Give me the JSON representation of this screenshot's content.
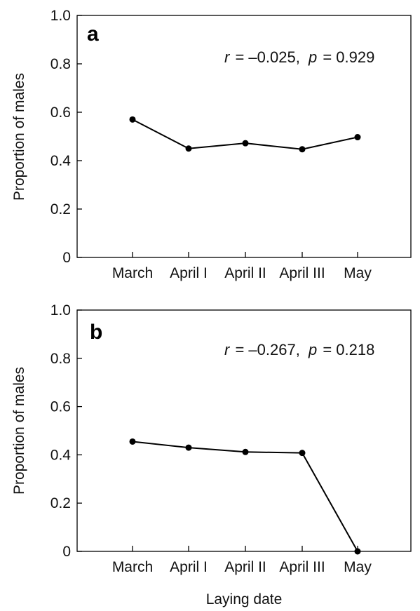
{
  "chart_data": [
    {
      "type": "line",
      "panel_label": "a",
      "categories": [
        "March",
        "April I",
        "April II",
        "April III",
        "May"
      ],
      "values": [
        0.57,
        0.45,
        0.472,
        0.447,
        0.497
      ],
      "ylabel": "Proportion of males",
      "xlabel": "",
      "ylim": [
        0,
        1.0
      ],
      "yticks": [
        0,
        0.2,
        0.4,
        0.6,
        0.8,
        1.0
      ],
      "ytick_labels": [
        "0",
        "0.2",
        "0.4",
        "0.6",
        "0.8",
        "1.0"
      ],
      "stat": {
        "r_symbol": "r",
        "r_value": "= –0.025,",
        "p_symbol": "p",
        "p_value": "= 0.929"
      },
      "grid": false
    },
    {
      "type": "line",
      "panel_label": "b",
      "categories": [
        "March",
        "April I",
        "April II",
        "April III",
        "May"
      ],
      "values": [
        0.455,
        0.43,
        0.412,
        0.408,
        0.0
      ],
      "ylabel": "Proportion of males",
      "xlabel": "Laying date",
      "ylim": [
        0,
        1.0
      ],
      "yticks": [
        0,
        0.2,
        0.4,
        0.6,
        0.8,
        1.0
      ],
      "ytick_labels": [
        "0",
        "0.2",
        "0.4",
        "0.6",
        "0.8",
        "1.0"
      ],
      "stat": {
        "r_symbol": "r",
        "r_value": "= –0.267,",
        "p_symbol": "p",
        "p_value": "= 0.218"
      },
      "grid": false
    }
  ]
}
